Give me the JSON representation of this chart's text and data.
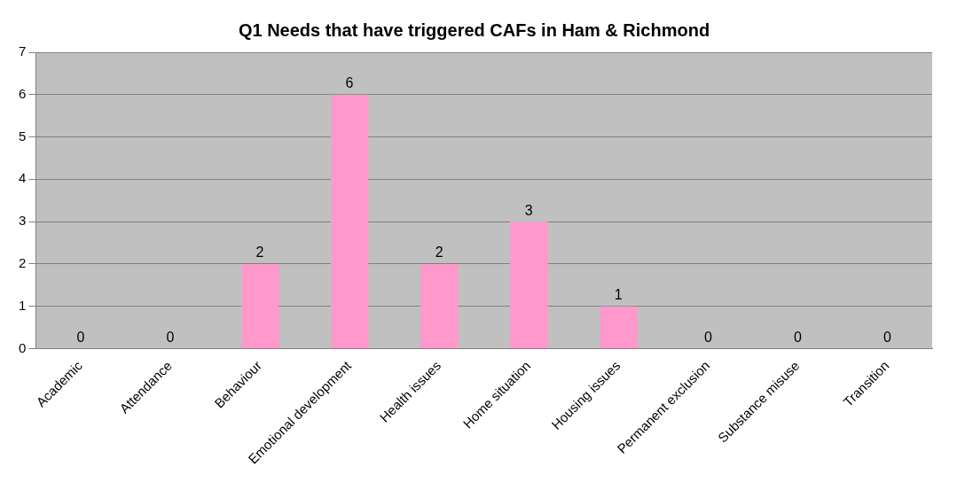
{
  "chart_data": {
    "type": "bar",
    "title": "Q1 Needs that have triggered CAFs in Ham & Richmond",
    "categories": [
      "Academic",
      "Attendance",
      "Behaviour",
      "Emotional development",
      "Health issues",
      "Home situation",
      "Housing issues",
      "Permanent exclusion",
      "Substance misuse",
      "Transition"
    ],
    "values": [
      0,
      0,
      2,
      6,
      2,
      3,
      1,
      0,
      0,
      0
    ],
    "color": "#ff99cc",
    "ylim": [
      0,
      7
    ],
    "yticks": [
      0,
      1,
      2,
      3,
      4,
      5,
      6,
      7
    ],
    "grid": "y",
    "data_labels": true,
    "legend": false
  }
}
